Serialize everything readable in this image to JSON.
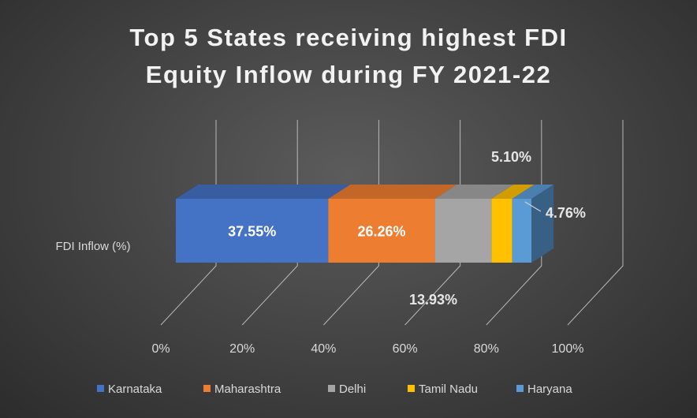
{
  "chart_data": {
    "type": "bar",
    "orientation": "horizontal",
    "stacked": true,
    "percent_stacked": true,
    "style": "3d",
    "title": "Top 5 States receiving highest FDI Equity Inflow during FY 2021-22",
    "title_lines": [
      "Top 5 States receiving highest FDI",
      "Equity Inflow during FY 2021-22"
    ],
    "categories": [
      "FDI Inflow (%)"
    ],
    "series": [
      {
        "name": "Karnataka",
        "values": [
          37.55
        ],
        "label": "37.55%",
        "color": "#4472c4"
      },
      {
        "name": "Maharashtra",
        "values": [
          26.26
        ],
        "label": "26.26%",
        "color": "#ed7d31"
      },
      {
        "name": "Delhi",
        "values": [
          13.93
        ],
        "label": "13.93%",
        "color": "#a5a5a5"
      },
      {
        "name": "Tamil Nadu",
        "values": [
          5.1
        ],
        "label": "5.10%",
        "color": "#ffc000"
      },
      {
        "name": "Haryana",
        "values": [
          4.76
        ],
        "label": "4.76%",
        "color": "#5b9bd5"
      }
    ],
    "x_ticks": [
      "0%",
      "20%",
      "40%",
      "60%",
      "80%",
      "100%"
    ],
    "xlim": [
      0,
      100
    ],
    "grid": true,
    "legend_position": "bottom"
  }
}
